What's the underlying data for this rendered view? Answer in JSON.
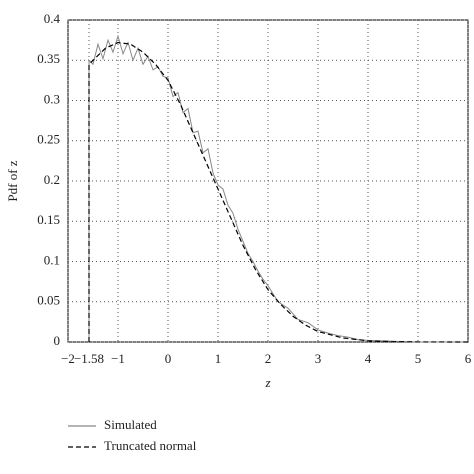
{
  "chart_data": {
    "type": "line",
    "xlabel": "z",
    "ylabel": "Pdf of z",
    "xlim": [
      -2,
      6
    ],
    "ylim": [
      0,
      0.4
    ],
    "xticks": [
      {
        "value": -2,
        "label": "−2"
      },
      {
        "value": -1.58,
        "label": "−1.58"
      },
      {
        "value": -1,
        "label": "−1"
      },
      0,
      1,
      2,
      3,
      4,
      5,
      6
    ],
    "yticks": [
      0,
      0.05,
      0.1,
      0.15,
      0.2,
      0.25,
      0.3,
      0.35,
      0.4
    ],
    "grid": true,
    "series": [
      {
        "name": "Simulated",
        "color": "#888888",
        "dash": "solid",
        "x": [
          -1.58,
          -1.58,
          -1.5,
          -1.4,
          -1.3,
          -1.2,
          -1.1,
          -1.0,
          -0.9,
          -0.8,
          -0.7,
          -0.6,
          -0.5,
          -0.4,
          -0.3,
          -0.2,
          -0.1,
          0,
          0.1,
          0.2,
          0.3,
          0.4,
          0.5,
          0.6,
          0.7,
          0.8,
          0.9,
          1.0,
          1.1,
          1.2,
          1.3,
          1.4,
          1.5,
          1.6,
          1.7,
          1.8,
          1.9,
          2.0,
          2.2,
          2.4,
          2.6,
          2.8,
          3.0,
          3.2,
          3.4,
          3.6,
          3.8,
          4.0,
          4.5,
          5,
          6
        ],
        "values": [
          0,
          0.35,
          0.345,
          0.37,
          0.352,
          0.375,
          0.36,
          0.38,
          0.358,
          0.372,
          0.35,
          0.365,
          0.345,
          0.355,
          0.338,
          0.342,
          0.33,
          0.328,
          0.305,
          0.31,
          0.285,
          0.29,
          0.26,
          0.262,
          0.235,
          0.24,
          0.21,
          0.195,
          0.19,
          0.17,
          0.16,
          0.14,
          0.125,
          0.11,
          0.1,
          0.088,
          0.078,
          0.07,
          0.05,
          0.042,
          0.028,
          0.024,
          0.015,
          0.011,
          0.008,
          0.006,
          0.003,
          0.002,
          0.001,
          0,
          0
        ]
      },
      {
        "name": "Truncated normal",
        "color": "#000000",
        "dash": "dashed",
        "x": [
          -1.58,
          -1.58,
          -1.25,
          -1,
          -0.75,
          -0.5,
          -0.25,
          0,
          0.25,
          0.5,
          0.75,
          1,
          1.25,
          1.5,
          1.75,
          2,
          2.25,
          2.5,
          2.75,
          3,
          3.5,
          4,
          4.5,
          5,
          6
        ],
        "values": [
          0,
          0.345,
          0.365,
          0.372,
          0.37,
          0.36,
          0.345,
          0.325,
          0.295,
          0.26,
          0.225,
          0.19,
          0.155,
          0.12,
          0.09,
          0.065,
          0.047,
          0.032,
          0.021,
          0.013,
          0.005,
          0.0015,
          0.0004,
          0.0001,
          0
        ]
      }
    ]
  }
}
